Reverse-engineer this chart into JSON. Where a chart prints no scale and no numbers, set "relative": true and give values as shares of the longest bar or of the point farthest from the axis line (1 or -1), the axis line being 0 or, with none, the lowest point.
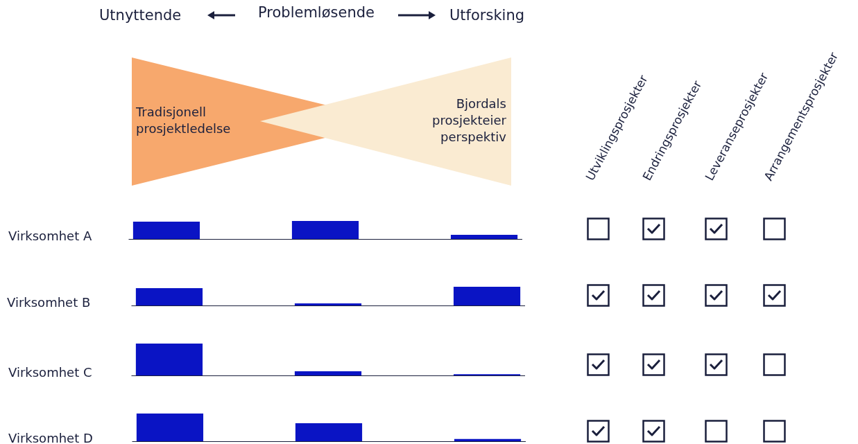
{
  "chart_data": [
    {
      "type": "other",
      "annotations": [
        "Utnyttende",
        "Problemløsende",
        "Utforsking",
        "Tradisjonell prosjektledelse",
        "Bjordals prosjekteier perspektiv",
        "Utviklingsprosjekter",
        "Endringsprosjekter",
        "Leveranseprosjekter",
        "Arrangementsprosjekter"
      ]
    },
    {
      "type": "bar",
      "title": "Virksomhet A",
      "categories": [
        null,
        null,
        null
      ],
      "values": [
        0.96,
        1,
        0.23
      ],
      "color": "#0a14c4",
      "relative": true
    },
    {
      "type": "bar",
      "title": "Virksomhet B",
      "categories": [
        null,
        null,
        null
      ],
      "values": [
        0.93,
        0.11,
        1
      ],
      "color": "#0a14c4",
      "relative": true
    },
    {
      "type": "bar",
      "title": "Virksomhet C",
      "categories": [
        null,
        null,
        null
      ],
      "values": [
        1,
        0.13,
        0.04
      ],
      "color": "#0a14c4",
      "relative": true
    },
    {
      "type": "bar",
      "title": "Virksomhet D",
      "categories": [
        null,
        null,
        null
      ],
      "values": [
        1,
        0.65,
        0.08
      ],
      "color": "#0a14c4",
      "relative": true
    }
  ]
}
